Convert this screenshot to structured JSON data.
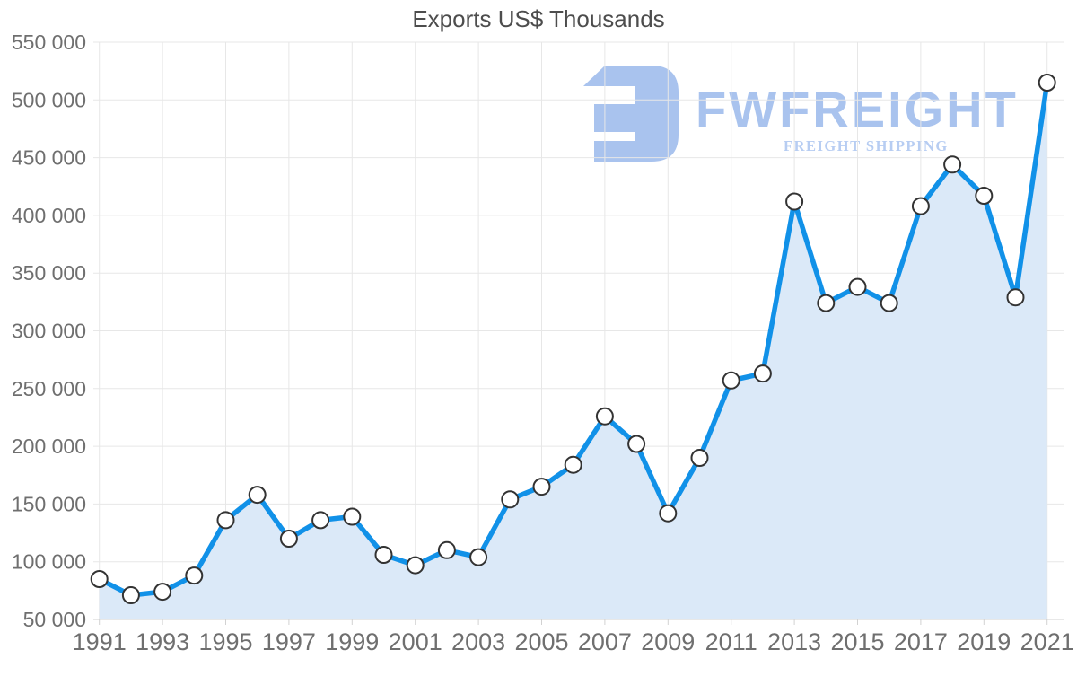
{
  "page_title": "Exports US$ Thousands",
  "watermark": {
    "brand": "FWFREIGHT",
    "tagline": "FREIGHT SHIPPING",
    "logo_icon": "fwfreight-f-mark"
  },
  "colors": {
    "line": "#1191E8",
    "area_fill": "#DBE9F8",
    "grid": "#E7E7E7",
    "axis": "#D2D2D2",
    "tick_text": "#6F6F6F",
    "title_text": "#4D4D4D",
    "marker_fill": "#FFFFFF",
    "marker_stroke": "#333333",
    "watermark_primary": "#A9C3EE",
    "watermark_secondary": "#B7CDF2"
  },
  "chart_data": {
    "type": "area",
    "title": "Exports US$ Thousands",
    "xlabel": "",
    "ylabel": "",
    "legend_position": "none",
    "grid": true,
    "marker": "circle",
    "ylim": [
      50000,
      550000
    ],
    "x": [
      1991,
      1992,
      1993,
      1994,
      1995,
      1996,
      1997,
      1998,
      1999,
      2000,
      2001,
      2002,
      2003,
      2004,
      2005,
      2006,
      2007,
      2008,
      2009,
      2010,
      2011,
      2012,
      2013,
      2014,
      2015,
      2016,
      2017,
      2018,
      2019,
      2020,
      2021
    ],
    "series": [
      {
        "name": "Exports US$ Thousands",
        "values": [
          85000,
          71000,
          74000,
          88000,
          136000,
          158000,
          120000,
          136000,
          139000,
          106000,
          97000,
          110000,
          104000,
          154000,
          165000,
          184000,
          226000,
          202000,
          142000,
          190000,
          257000,
          263000,
          412000,
          324000,
          338000,
          324000,
          408000,
          444000,
          417000,
          329000,
          515000
        ]
      }
    ],
    "y_ticks": {
      "values": [
        50000,
        100000,
        150000,
        200000,
        250000,
        300000,
        350000,
        400000,
        450000,
        500000,
        550000
      ],
      "labels": [
        "50 000",
        "100 000",
        "150 000",
        "200 000",
        "250 000",
        "300 000",
        "350 000",
        "400 000",
        "450 000",
        "500 000",
        "550 000"
      ]
    },
    "x_tick_years": [
      1991,
      1993,
      1995,
      1997,
      1999,
      2001,
      2003,
      2005,
      2007,
      2009,
      2011,
      2013,
      2015,
      2017,
      2019,
      2021
    ],
    "x_tick_labels": [
      "1991",
      "1993",
      "1995",
      "1997",
      "1999",
      "2001",
      "2003",
      "2005",
      "2007",
      "2009",
      "2011",
      "2013",
      "2015",
      "2017",
      "2019",
      "2021"
    ]
  }
}
